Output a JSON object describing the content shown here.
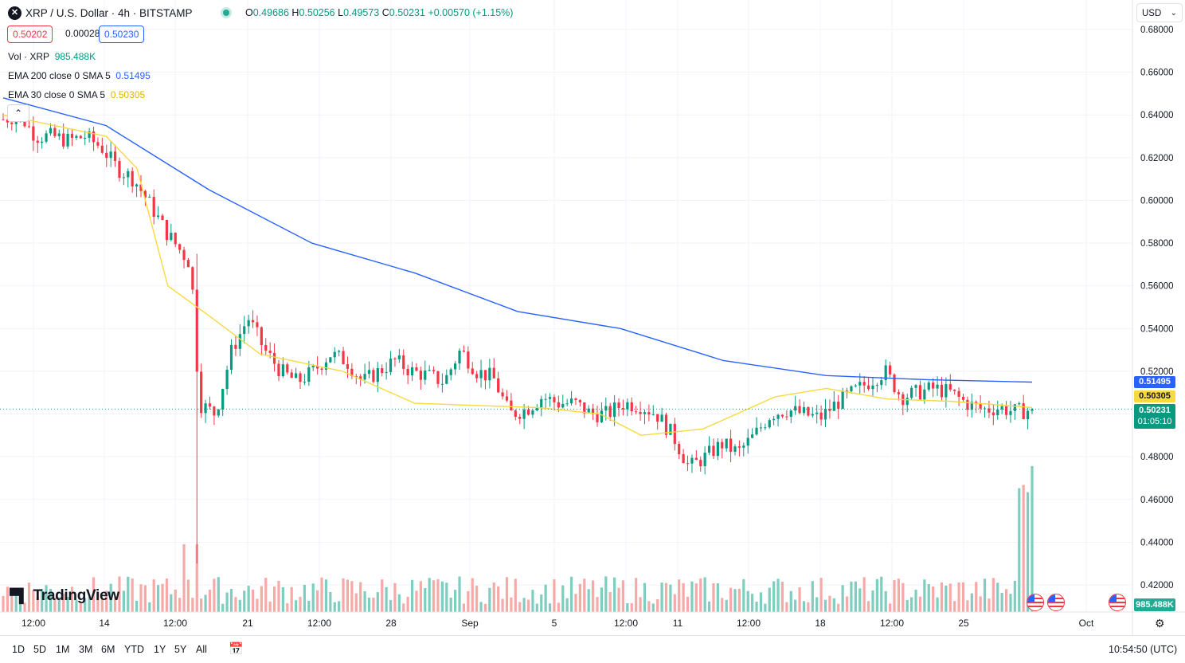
{
  "header": {
    "symbol_icon": "xrp-icon",
    "title": "XRP / U.S. Dollar · 4h · BITSTAMP",
    "ohlc": {
      "o_label": "O",
      "o": "0.49686",
      "h_label": "H",
      "h": "0.50256",
      "l_label": "L",
      "l": "0.49573",
      "c_label": "C",
      "c": "0.50231",
      "change": "+0.00570 (+1.15%)"
    },
    "bid": "0.50202",
    "spread": "0.00028",
    "ask": "0.50230"
  },
  "indicators": {
    "vol": {
      "label": "Vol · XRP",
      "value": "985.488K"
    },
    "ema200": {
      "label": "EMA 200 close 0 SMA 5",
      "value": "0.51495"
    },
    "ema30": {
      "label": "EMA 30 close 0 SMA 5",
      "value": "0.50305"
    }
  },
  "currency": {
    "value": "USD"
  },
  "price_labels": {
    "ema200": "0.51495",
    "ema30": "0.50305",
    "last": "0.50231",
    "countdown": "01:05:10",
    "volume": "985.488K"
  },
  "colors": {
    "up": "#089981",
    "down": "#f23645",
    "ema200": "#2962ff",
    "ema30": "#f7d940",
    "vol_up": "#7fcdbe",
    "vol_down": "#f7a9a7",
    "grid": "#f0f3fa",
    "last_line": "#089981"
  },
  "range_buttons": [
    "1D",
    "5D",
    "1M",
    "3M",
    "6M",
    "YTD",
    "1Y",
    "5Y",
    "All"
  ],
  "footer": {
    "time": "10:54:50 (UTC)",
    "logo_text": "TradingView"
  },
  "chart_data": {
    "type": "candlestick",
    "title": "XRP / U.S. Dollar · 4h · BITSTAMP",
    "ylim": [
      0.41,
      0.685
    ],
    "y_ticks": [
      "0.68000",
      "0.66000",
      "0.64000",
      "0.62000",
      "0.60000",
      "0.58000",
      "0.56000",
      "0.54000",
      "0.52000",
      "0.50000",
      "0.48000",
      "0.46000",
      "0.44000",
      "0.42000"
    ],
    "x_ticks": [
      "12:00",
      "14",
      "12:00",
      "21",
      "12:00",
      "28",
      "Sep",
      "5",
      "12:00",
      "11",
      "12:00",
      "18",
      "12:00",
      "25",
      "Oct"
    ],
    "x_domain_days": [
      0,
      50
    ],
    "x_tick_days": [
      1.5,
      5,
      8.5,
      12,
      15.5,
      19,
      22,
      26,
      29.5,
      33,
      36.5,
      40,
      43.5,
      47,
      53
    ],
    "close_path": [
      [
        0,
        0.638
      ],
      [
        1,
        0.64
      ],
      [
        2,
        0.63
      ],
      [
        3,
        0.63
      ],
      [
        4,
        0.628
      ],
      [
        5,
        0.63
      ],
      [
        6,
        0.625
      ],
      [
        7,
        0.615
      ],
      [
        8,
        0.61
      ],
      [
        9,
        0.598
      ],
      [
        10,
        0.585
      ],
      [
        11,
        0.575
      ],
      [
        11.5,
        0.57
      ],
      [
        12,
        0.505
      ],
      [
        13,
        0.5
      ],
      [
        14,
        0.53
      ],
      [
        15,
        0.545
      ],
      [
        16,
        0.53
      ],
      [
        17,
        0.52
      ],
      [
        18,
        0.515
      ],
      [
        19,
        0.52
      ],
      [
        20,
        0.528
      ],
      [
        21,
        0.525
      ],
      [
        22,
        0.515
      ],
      [
        23,
        0.52
      ],
      [
        24,
        0.525
      ],
      [
        25,
        0.52
      ],
      [
        26,
        0.518
      ],
      [
        27,
        0.515
      ],
      [
        28,
        0.53
      ],
      [
        29,
        0.52
      ],
      [
        30,
        0.517
      ],
      [
        31,
        0.5
      ],
      [
        32,
        0.502
      ],
      [
        33,
        0.508
      ],
      [
        34,
        0.505
      ],
      [
        35,
        0.505
      ],
      [
        36,
        0.5
      ],
      [
        37,
        0.5
      ],
      [
        38,
        0.505
      ],
      [
        39,
        0.504
      ],
      [
        40,
        0.5
      ],
      [
        41,
        0.49
      ],
      [
        42,
        0.475
      ],
      [
        43,
        0.48
      ],
      [
        44,
        0.486
      ],
      [
        45,
        0.482
      ],
      [
        46,
        0.49
      ],
      [
        47,
        0.5
      ],
      [
        48,
        0.502
      ],
      [
        49,
        0.5
      ],
      [
        50,
        0.498
      ],
      [
        51,
        0.505
      ],
      [
        52,
        0.51
      ],
      [
        53,
        0.515
      ],
      [
        54,
        0.52
      ],
      [
        55,
        0.508
      ],
      [
        56,
        0.51
      ],
      [
        57,
        0.512
      ],
      [
        58,
        0.51
      ],
      [
        59,
        0.505
      ],
      [
        60,
        0.502
      ],
      [
        61,
        0.503
      ],
      [
        62,
        0.501
      ],
      [
        63,
        0.502
      ]
    ],
    "ema200": [
      [
        0,
        0.648
      ],
      [
        10,
        0.635
      ],
      [
        20,
        0.605
      ],
      [
        30,
        0.58
      ],
      [
        40,
        0.566
      ],
      [
        50,
        0.548
      ],
      [
        60,
        0.54
      ],
      [
        70,
        0.525
      ],
      [
        80,
        0.518
      ],
      [
        90,
        0.516
      ],
      [
        100,
        0.51495
      ]
    ],
    "ema30": [
      [
        0,
        0.64
      ],
      [
        10,
        0.63
      ],
      [
        13,
        0.615
      ],
      [
        16,
        0.56
      ],
      [
        20,
        0.546
      ],
      [
        25,
        0.528
      ],
      [
        33,
        0.52
      ],
      [
        40,
        0.505
      ],
      [
        52,
        0.503
      ],
      [
        58,
        0.5
      ],
      [
        62,
        0.49
      ],
      [
        68,
        0.493
      ],
      [
        75,
        0.508
      ],
      [
        80,
        0.512
      ],
      [
        86,
        0.507
      ],
      [
        92,
        0.506
      ],
      [
        100,
        0.50305
      ]
    ],
    "last_price": 0.50231,
    "volume_last": "985.488K"
  }
}
